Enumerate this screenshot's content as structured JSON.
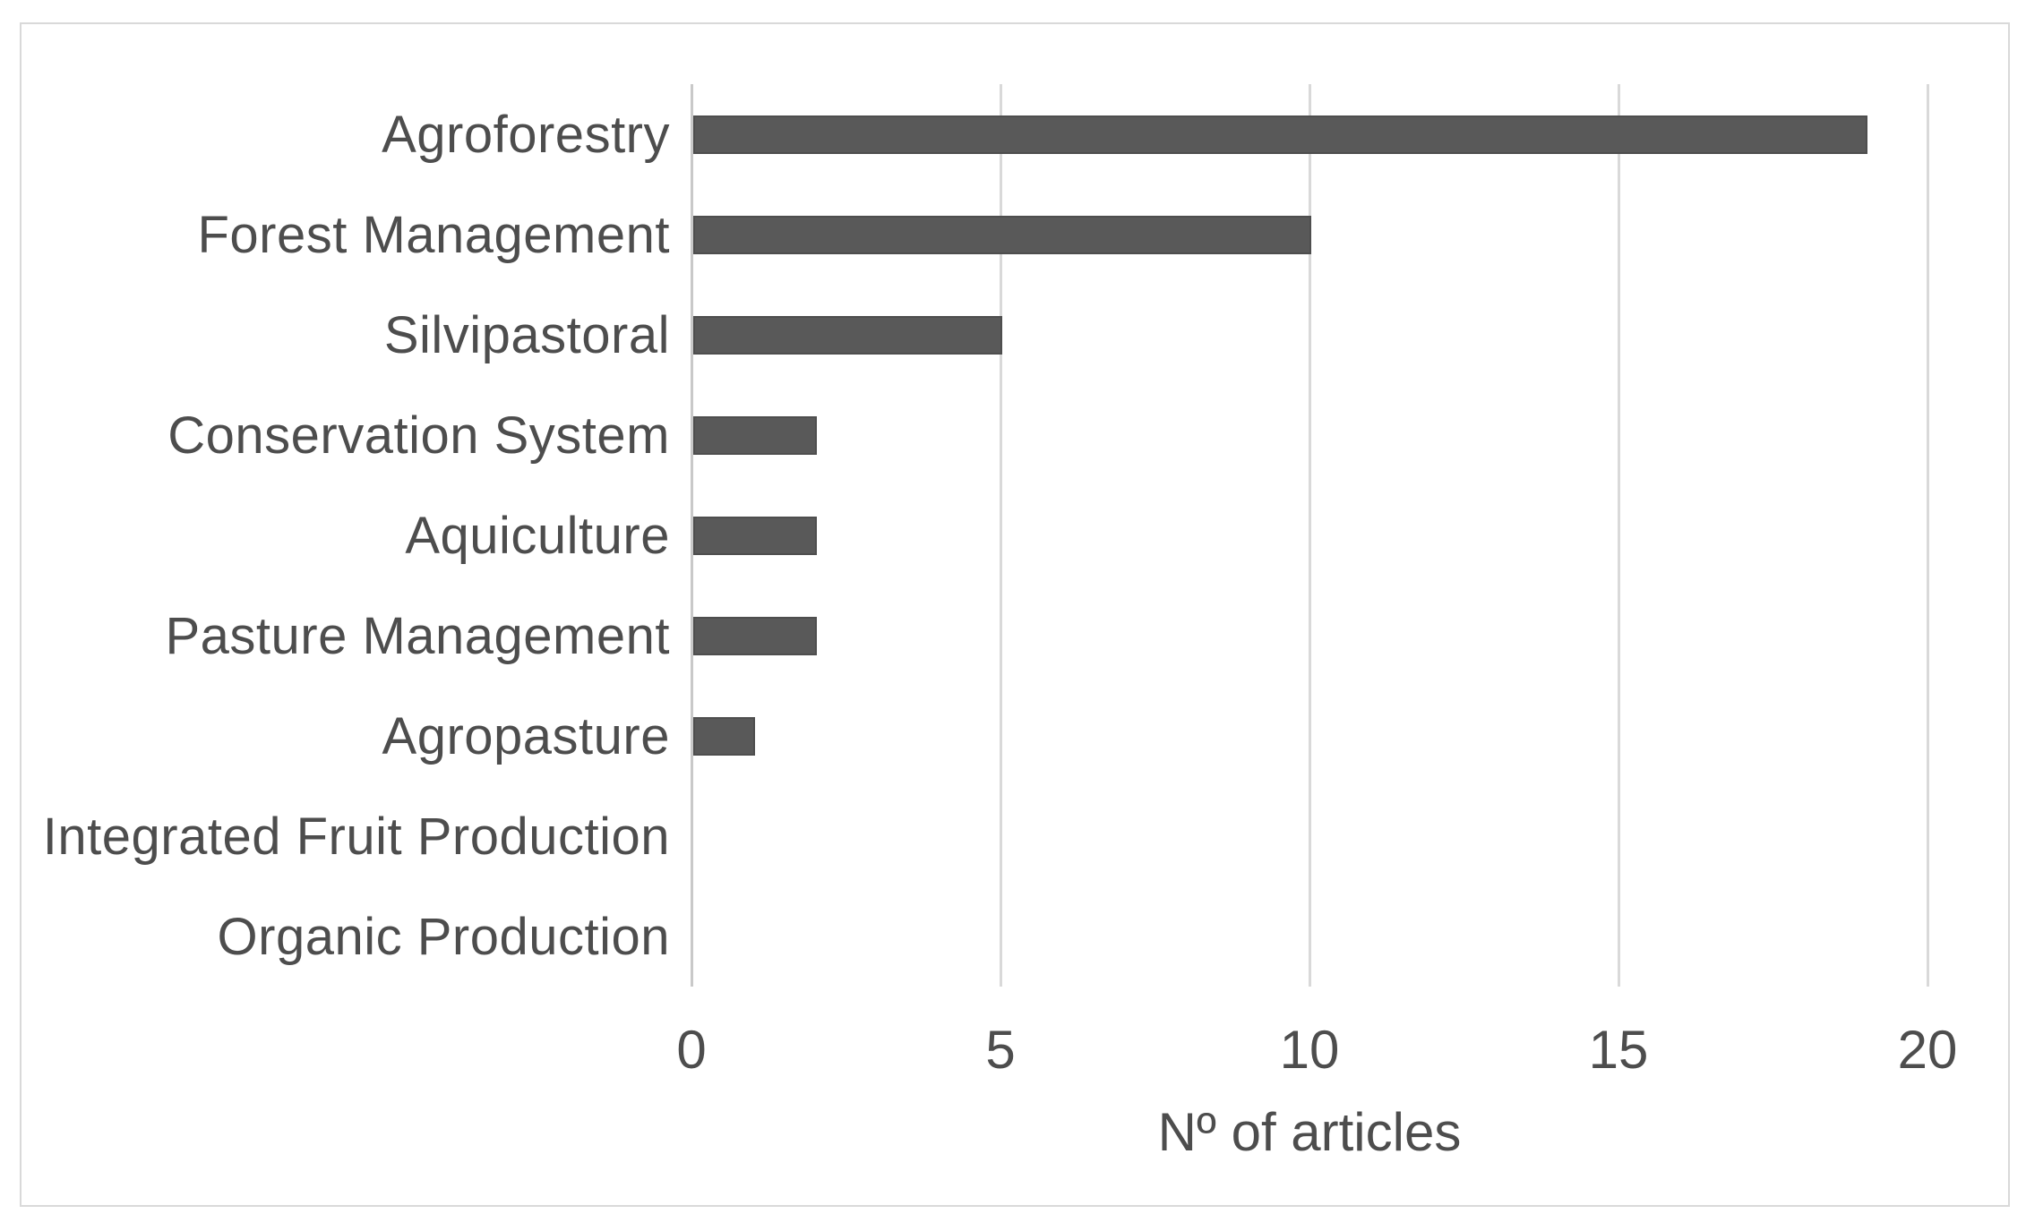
{
  "chart_data": {
    "type": "bar",
    "orientation": "horizontal",
    "title": "",
    "xlabel": "Nº of articles",
    "ylabel": "",
    "categories": [
      "Agroforestry",
      "Forest Management",
      "Silvipastoral",
      "Conservation System",
      "Aquiculture",
      "Pasture Management",
      "Agropasture",
      "Integrated Fruit Production",
      "Organic Production"
    ],
    "values": [
      19,
      10,
      5,
      2,
      2,
      2,
      1,
      0,
      0
    ],
    "xlim": [
      0,
      20
    ],
    "xticks": [
      0,
      5,
      10,
      15,
      20
    ],
    "grid": true,
    "legend": false,
    "colors": {
      "bar": "#595959",
      "bar_border": "#4e4e4e",
      "gridline": "#d9d9d9",
      "axis_line": "#c9c9c9",
      "text": "#4d4d4d",
      "frame_border": "#d9d9d9",
      "background": "#ffffff"
    }
  }
}
